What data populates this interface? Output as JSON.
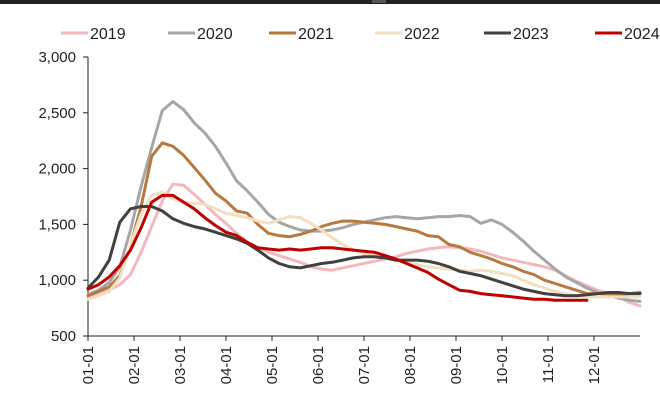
{
  "chart_data": {
    "type": "line",
    "title": "",
    "xlabel": "",
    "ylabel": "",
    "x_ticks": [
      "01-01",
      "02-01",
      "03-01",
      "04-01",
      "05-01",
      "06-01",
      "07-01",
      "08-01",
      "09-01",
      "10-01",
      "11-01",
      "12-01"
    ],
    "y_ticks": [
      "500",
      "1,000",
      "1,500",
      "2,000",
      "2,500",
      "3,000"
    ],
    "ylim": [
      500,
      3000
    ],
    "x_unit": "week_of_year",
    "xlim": [
      1,
      53
    ],
    "legend_position": "top",
    "grid": false,
    "series": [
      {
        "name": "2019",
        "color": "#f2b8bc",
        "x": [
          1,
          2,
          3,
          4,
          5,
          6,
          7,
          8,
          9,
          10,
          11,
          12,
          13,
          14,
          15,
          16,
          17,
          18,
          19,
          20,
          21,
          22,
          23,
          24,
          25,
          26,
          27,
          28,
          29,
          30,
          31,
          32,
          33,
          34,
          35,
          36,
          37,
          38,
          39,
          40,
          41,
          42,
          43,
          44,
          45,
          46,
          47,
          48,
          49,
          50,
          51,
          52,
          53
        ],
        "values": [
          840,
          880,
          910,
          960,
          1050,
          1250,
          1480,
          1710,
          1860,
          1850,
          1770,
          1680,
          1590,
          1510,
          1420,
          1340,
          1290,
          1250,
          1220,
          1190,
          1160,
          1120,
          1100,
          1090,
          1110,
          1130,
          1150,
          1170,
          1190,
          1210,
          1240,
          1260,
          1280,
          1290,
          1300,
          1290,
          1280,
          1260,
          1230,
          1200,
          1180,
          1160,
          1140,
          1120,
          1090,
          1040,
          990,
          950,
          910,
          880,
          850,
          800,
          770
        ]
      },
      {
        "name": "2020",
        "color": "#a6a6a6",
        "x": [
          1,
          2,
          3,
          4,
          5,
          6,
          7,
          8,
          9,
          10,
          11,
          12,
          13,
          14,
          15,
          16,
          17,
          18,
          19,
          20,
          21,
          22,
          23,
          24,
          25,
          26,
          27,
          28,
          29,
          30,
          31,
          32,
          33,
          34,
          35,
          36,
          37,
          38,
          39,
          40,
          41,
          42,
          43,
          44,
          45,
          46,
          47,
          48,
          49,
          50,
          51,
          52,
          53
        ],
        "values": [
          870,
          910,
          980,
          1120,
          1450,
          1840,
          2190,
          2520,
          2600,
          2530,
          2410,
          2320,
          2200,
          2050,
          1890,
          1800,
          1700,
          1590,
          1520,
          1480,
          1450,
          1440,
          1440,
          1450,
          1470,
          1500,
          1520,
          1540,
          1560,
          1570,
          1560,
          1550,
          1560,
          1570,
          1570,
          1580,
          1570,
          1510,
          1540,
          1500,
          1430,
          1350,
          1260,
          1180,
          1100,
          1030,
          980,
          930,
          890,
          860,
          840,
          820,
          810
        ]
      },
      {
        "name": "2021",
        "color": "#b87941",
        "x": [
          1,
          2,
          3,
          4,
          5,
          6,
          7,
          8,
          9,
          10,
          11,
          12,
          13,
          14,
          15,
          16,
          17,
          18,
          19,
          20,
          21,
          22,
          23,
          24,
          25,
          26,
          27,
          28,
          29,
          30,
          31,
          32,
          33,
          34,
          35,
          36,
          37,
          38,
          39,
          40,
          41,
          42,
          43,
          44,
          45,
          46,
          47,
          48,
          49,
          50,
          51,
          52,
          53
        ],
        "values": [
          860,
          900,
          940,
          1040,
          1310,
          1660,
          2110,
          2230,
          2200,
          2120,
          2010,
          1900,
          1780,
          1710,
          1620,
          1600,
          1500,
          1420,
          1400,
          1390,
          1410,
          1440,
          1480,
          1510,
          1530,
          1530,
          1520,
          1510,
          1500,
          1480,
          1460,
          1440,
          1400,
          1390,
          1320,
          1300,
          1250,
          1220,
          1190,
          1150,
          1120,
          1080,
          1050,
          1000,
          970,
          940,
          910,
          880,
          880,
          880,
          870,
          880,
          890
        ]
      },
      {
        "name": "2022",
        "color": "#f2dfc0",
        "x": [
          1,
          2,
          3,
          4,
          5,
          6,
          7,
          8,
          9,
          10,
          11,
          12,
          13,
          14,
          15,
          16,
          17,
          18,
          19,
          20,
          21,
          22,
          23,
          24,
          25,
          26,
          27,
          28,
          29,
          30,
          31,
          32,
          33,
          34,
          35,
          36,
          37,
          38,
          39,
          40,
          41,
          42,
          43,
          44,
          45,
          46,
          47,
          48,
          49,
          50,
          51,
          52,
          53
        ],
        "values": [
          830,
          860,
          900,
          1020,
          1320,
          1590,
          1760,
          1790,
          1730,
          1700,
          1690,
          1680,
          1640,
          1600,
          1580,
          1560,
          1530,
          1510,
          1540,
          1570,
          1560,
          1510,
          1450,
          1380,
          1320,
          1270,
          1240,
          1220,
          1200,
          1180,
          1160,
          1140,
          1120,
          1110,
          1100,
          1090,
          1080,
          1090,
          1080,
          1060,
          1040,
          1000,
          960,
          930,
          900,
          880,
          860,
          850,
          850,
          850,
          850,
          850,
          850
        ]
      },
      {
        "name": "2023",
        "color": "#404040",
        "x": [
          1,
          2,
          3,
          4,
          5,
          6,
          7,
          8,
          9,
          10,
          11,
          12,
          13,
          14,
          15,
          16,
          17,
          18,
          19,
          20,
          21,
          22,
          23,
          24,
          25,
          26,
          27,
          28,
          29,
          30,
          31,
          32,
          33,
          34,
          35,
          36,
          37,
          38,
          39,
          40,
          41,
          42,
          43,
          44,
          45,
          46,
          47,
          48,
          49,
          50,
          51,
          52,
          53
        ],
        "values": [
          930,
          1030,
          1180,
          1520,
          1640,
          1660,
          1660,
          1620,
          1550,
          1510,
          1480,
          1460,
          1430,
          1400,
          1370,
          1330,
          1270,
          1200,
          1150,
          1120,
          1110,
          1130,
          1150,
          1160,
          1180,
          1200,
          1210,
          1210,
          1200,
          1180,
          1180,
          1180,
          1170,
          1150,
          1120,
          1080,
          1060,
          1040,
          1010,
          980,
          950,
          920,
          900,
          880,
          870,
          860,
          860,
          870,
          880,
          890,
          890,
          880,
          880
        ]
      },
      {
        "name": "2024",
        "color": "#c00000",
        "x": [
          1,
          2,
          3,
          4,
          5,
          6,
          7,
          8,
          9,
          10,
          11,
          12,
          13,
          14,
          15,
          16,
          17,
          18,
          19,
          20,
          21,
          22,
          23,
          24,
          25,
          26,
          27,
          28,
          29,
          30,
          31,
          32,
          33,
          34,
          35,
          36,
          37,
          38,
          39,
          40,
          41,
          42,
          43,
          44,
          45,
          46,
          47,
          48
        ],
        "values": [
          920,
          960,
          1030,
          1130,
          1270,
          1470,
          1700,
          1760,
          1760,
          1700,
          1640,
          1560,
          1490,
          1430,
          1400,
          1340,
          1290,
          1280,
          1270,
          1280,
          1270,
          1280,
          1290,
          1290,
          1280,
          1270,
          1260,
          1250,
          1220,
          1190,
          1150,
          1110,
          1070,
          1010,
          960,
          910,
          900,
          880,
          870,
          860,
          850,
          840,
          830,
          830,
          820,
          820,
          820,
          820
        ]
      }
    ]
  }
}
